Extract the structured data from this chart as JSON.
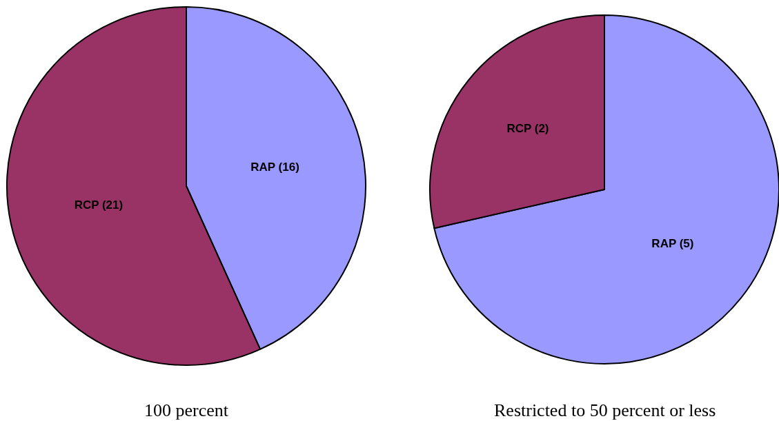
{
  "chart_data": [
    {
      "type": "pie",
      "title": "100 percent",
      "categories": [
        "RAP (16)",
        "RCP (21)"
      ],
      "values": [
        16,
        21
      ],
      "colors": [
        "#9999ff",
        "#993366"
      ],
      "legend": false
    },
    {
      "type": "pie",
      "title": "Restricted to 50 percent or less",
      "categories": [
        "RAP (5)",
        "RCP (2)"
      ],
      "values": [
        5,
        2
      ],
      "colors": [
        "#9999ff",
        "#993366"
      ],
      "legend": false
    }
  ]
}
